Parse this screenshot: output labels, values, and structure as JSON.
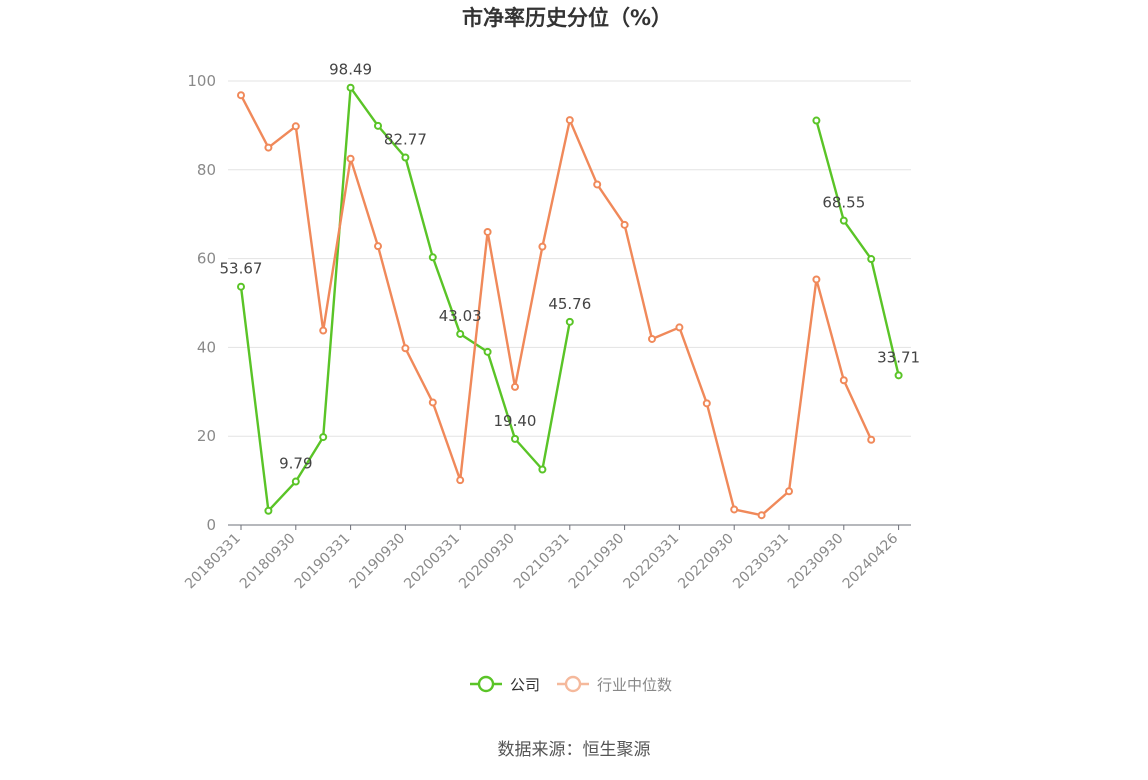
{
  "chart_data": {
    "type": "line",
    "title": "市净率历史分位（%）",
    "ylim": [
      0,
      100
    ],
    "yticks": [
      0,
      20,
      40,
      60,
      80,
      100
    ],
    "grid": true,
    "legend_position": "bottom",
    "x": [
      "20180331",
      "20180630",
      "20180930",
      "20181231",
      "20190331",
      "20190630",
      "20190930",
      "20191231",
      "20200331",
      "20200630",
      "20200930",
      "20201231",
      "20210331",
      "20210630",
      "20210930",
      "20211231",
      "20220331",
      "20220630",
      "20220930",
      "20221231",
      "20230331",
      "20230630",
      "20230930",
      "20231231",
      "20240426"
    ],
    "xtick_labels": [
      "20180331",
      "20180930",
      "20190331",
      "20190930",
      "20200331",
      "20200930",
      "20210331",
      "20210930",
      "20220331",
      "20220930",
      "20230331",
      "20230930",
      "20240426"
    ],
    "series": [
      {
        "name": "公司",
        "color": "#5ac427",
        "values": [
          53.67,
          3.2,
          9.79,
          19.8,
          98.49,
          89.9,
          82.77,
          60.3,
          43.03,
          39.0,
          19.4,
          12.5,
          45.76,
          null,
          null,
          null,
          null,
          null,
          null,
          null,
          null,
          91.1,
          68.55,
          59.9,
          33.71
        ],
        "labels": {
          "0": "53.67",
          "2": "9.79",
          "4": "98.49",
          "6": "82.77",
          "8": "43.03",
          "10": "19.40",
          "12": "45.76",
          "22": "68.55",
          "24": "33.71"
        }
      },
      {
        "name": "行业中位数",
        "color": "#f0895a",
        "values": [
          96.8,
          85.0,
          89.8,
          43.8,
          82.5,
          62.8,
          39.8,
          27.6,
          10.1,
          66.0,
          31.1,
          62.7,
          91.2,
          76.7,
          67.6,
          41.9,
          44.5,
          27.4,
          3.5,
          2.2,
          7.6,
          55.3,
          32.6,
          19.2,
          null
        ]
      }
    ],
    "legend": [
      {
        "label": "公司",
        "color": "#5ac427"
      },
      {
        "label": "行业中位数",
        "color": "#f0895a"
      }
    ]
  },
  "source_text": "数据来源：恒生聚源"
}
